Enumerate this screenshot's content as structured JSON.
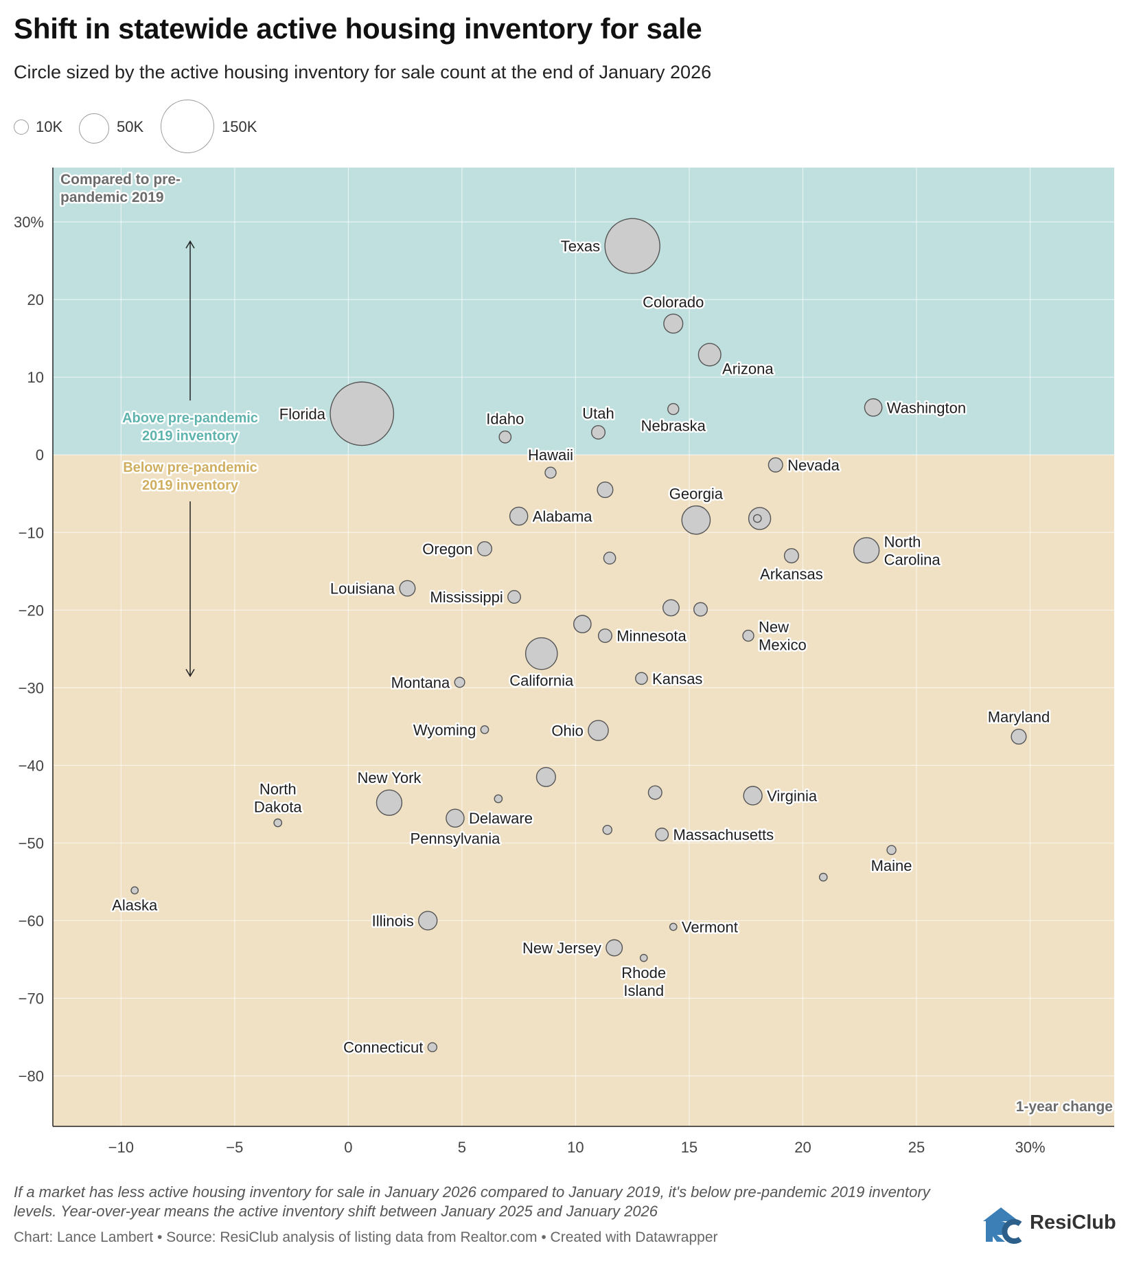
{
  "title": "Shift in statewide active housing inventory for sale",
  "subtitle": "Circle sized by the active housing inventory for sale count at the end of January 2026",
  "size_legend": [
    {
      "label": "10K",
      "value": 10000
    },
    {
      "label": "50K",
      "value": 50000
    },
    {
      "label": "150K",
      "value": 150000
    }
  ],
  "notes": "If a market has less active housing inventory for sale in January 2026 compared to January 2019, it's below pre-pandemic 2019 inventory levels. Year-over-year means the active inventory shift between January 2025 and January 2026",
  "credit": "Chart: Lance Lambert • Source: ResiClub analysis of listing data from Realtor.com • Created with Datawrapper",
  "brand": {
    "logo": "RC",
    "name": "ResiClub"
  },
  "colors": {
    "above": "#bfe0de",
    "below": "#f0e1c5",
    "above_text": "#5fb3ad",
    "below_text": "#cfae60",
    "bubble": "#cccccc",
    "bubble_stroke": "#555555"
  },
  "chart_data": {
    "type": "scatter",
    "title": "Shift in statewide active housing inventory for sale",
    "xlabel": "1-year change",
    "ylabel": "Compared to pre-pandemic 2019",
    "xlim": [
      -13,
      33.7
    ],
    "ylim": [
      -86.5,
      37
    ],
    "x_ticks": [
      {
        "value": -10,
        "label": "−10"
      },
      {
        "value": -5,
        "label": "−5"
      },
      {
        "value": 0,
        "label": "0"
      },
      {
        "value": 5,
        "label": "5"
      },
      {
        "value": 10,
        "label": "10"
      },
      {
        "value": 15,
        "label": "15"
      },
      {
        "value": 20,
        "label": "20"
      },
      {
        "value": 25,
        "label": "25"
      },
      {
        "value": 30,
        "label": "30%"
      }
    ],
    "y_ticks": [
      {
        "value": 30,
        "label": "30%"
      },
      {
        "value": 20,
        "label": "20"
      },
      {
        "value": 10,
        "label": "10"
      },
      {
        "value": 0,
        "label": "0"
      },
      {
        "value": -10,
        "label": "−10"
      },
      {
        "value": -20,
        "label": "−20"
      },
      {
        "value": -30,
        "label": "−30"
      },
      {
        "value": -40,
        "label": "−40"
      },
      {
        "value": -50,
        "label": "−50"
      },
      {
        "value": -60,
        "label": "−60"
      },
      {
        "value": -70,
        "label": "−70"
      },
      {
        "value": -80,
        "label": "−80"
      }
    ],
    "zones": {
      "above_label": [
        "Above pre-pandemic",
        "2019 inventory"
      ],
      "below_label": [
        "Below pre-pandemic",
        "2019 inventory"
      ]
    },
    "points": [
      {
        "name": "Texas",
        "x": 12.5,
        "y": 26.9,
        "size": 150000,
        "label": [
          "Texas"
        ],
        "pos": "left"
      },
      {
        "name": "Florida",
        "x": 0.6,
        "y": 5.3,
        "size": 200000,
        "label": [
          "Florida"
        ],
        "pos": "left"
      },
      {
        "name": "Colorado",
        "x": 14.3,
        "y": 16.9,
        "size": 18000,
        "label": [
          "Colorado"
        ],
        "pos": "top"
      },
      {
        "name": "Arizona",
        "x": 15.9,
        "y": 12.9,
        "size": 25000,
        "label": [
          "Arizona"
        ],
        "pos": "bottom-right"
      },
      {
        "name": "Washington",
        "x": 23.1,
        "y": 6.1,
        "size": 15000,
        "label": [
          "Washington"
        ],
        "pos": "right"
      },
      {
        "name": "Idaho",
        "x": 6.9,
        "y": 2.3,
        "size": 7000,
        "label": [
          "Idaho"
        ],
        "pos": "top"
      },
      {
        "name": "Utah",
        "x": 11.0,
        "y": 2.9,
        "size": 9000,
        "label": [
          "Utah"
        ],
        "pos": "top"
      },
      {
        "name": "Nebraska",
        "x": 14.3,
        "y": 5.9,
        "size": 6000,
        "label": [
          "Nebraska"
        ],
        "pos": "bottom"
      },
      {
        "name": "Hawaii",
        "x": 8.9,
        "y": -2.3,
        "size": 6000,
        "label": [
          "Hawaii"
        ],
        "pos": "top"
      },
      {
        "name": "Nevada",
        "x": 18.8,
        "y": -1.3,
        "size": 10000,
        "label": [
          "Nevada"
        ],
        "pos": "right"
      },
      {
        "name": "Georgia",
        "x": 15.3,
        "y": -8.4,
        "size": 40000,
        "label": [
          "Georgia"
        ],
        "pos": "top"
      },
      {
        "name": "Alabama",
        "x": 7.5,
        "y": -7.9,
        "size": 16000,
        "label": [
          "Alabama"
        ],
        "pos": "right"
      },
      {
        "name": "Oregon",
        "x": 6.0,
        "y": -12.1,
        "size": 10000,
        "label": [
          "Oregon"
        ],
        "pos": "left"
      },
      {
        "name": "North Carolina",
        "x": 22.8,
        "y": -12.3,
        "size": 32000,
        "label": [
          "North",
          "Carolina"
        ],
        "pos": "right"
      },
      {
        "name": "Arkansas",
        "x": 19.5,
        "y": -13.0,
        "size": 10000,
        "label": [
          "Arkansas"
        ],
        "pos": "bottom"
      },
      {
        "name": "Louisiana",
        "x": 2.6,
        "y": -17.2,
        "size": 12000,
        "label": [
          "Louisiana"
        ],
        "pos": "left"
      },
      {
        "name": "Mississippi",
        "x": 7.3,
        "y": -18.3,
        "size": 8000,
        "label": [
          "Mississippi"
        ],
        "pos": "left"
      },
      {
        "name": "Minnesota",
        "x": 11.3,
        "y": -23.3,
        "size": 9000,
        "label": [
          "Minnesota"
        ],
        "pos": "right"
      },
      {
        "name": "New Mexico",
        "x": 17.6,
        "y": -23.3,
        "size": 6000,
        "label": [
          "New",
          "Mexico"
        ],
        "pos": "right"
      },
      {
        "name": "California",
        "x": 8.5,
        "y": -25.6,
        "size": 50000,
        "label": [
          "California"
        ],
        "pos": "bottom"
      },
      {
        "name": "Montana",
        "x": 4.9,
        "y": -29.3,
        "size": 5000,
        "label": [
          "Montana"
        ],
        "pos": "left"
      },
      {
        "name": "Kansas",
        "x": 12.9,
        "y": -28.8,
        "size": 7000,
        "label": [
          "Kansas"
        ],
        "pos": "right"
      },
      {
        "name": "Maryland",
        "x": 29.5,
        "y": -36.3,
        "size": 11000,
        "label": [
          "Maryland"
        ],
        "pos": "top"
      },
      {
        "name": "Wyoming",
        "x": 6.0,
        "y": -35.4,
        "size": 3000,
        "label": [
          "Wyoming"
        ],
        "pos": "left"
      },
      {
        "name": "Ohio",
        "x": 11.0,
        "y": -35.5,
        "size": 20000,
        "label": [
          "Ohio"
        ],
        "pos": "left"
      },
      {
        "name": "New York",
        "x": 1.8,
        "y": -44.8,
        "size": 32000,
        "label": [
          "New York"
        ],
        "pos": "top"
      },
      {
        "name": "Virginia",
        "x": 17.8,
        "y": -43.9,
        "size": 17000,
        "label": [
          "Virginia"
        ],
        "pos": "right"
      },
      {
        "name": "North Dakota",
        "x": -3.1,
        "y": -47.4,
        "size": 3000,
        "label": [
          "North",
          "Dakota"
        ],
        "pos": "top"
      },
      {
        "name": "Delaware",
        "x": 4.7,
        "y": -46.8,
        "size": 16000,
        "label": [
          "Delaware"
        ],
        "pos": "right"
      },
      {
        "name": "Pennsylvania",
        "x": 4.7,
        "y": -46.8,
        "size": 0,
        "label": [
          "Pennsylvania"
        ],
        "pos": "bottom"
      },
      {
        "name": "Massachusetts",
        "x": 13.8,
        "y": -48.9,
        "size": 8000,
        "label": [
          "Massachusetts"
        ],
        "pos": "right"
      },
      {
        "name": "Maine",
        "x": 23.9,
        "y": -50.9,
        "size": 4000,
        "label": [
          "Maine"
        ],
        "pos": "bottom"
      },
      {
        "name": "Alaska",
        "x": -9.4,
        "y": -56.1,
        "size": 2500,
        "label": [
          "Alaska"
        ],
        "pos": "bottom"
      },
      {
        "name": "Illinois",
        "x": 3.5,
        "y": -60.0,
        "size": 17000,
        "label": [
          "Illinois"
        ],
        "pos": "left"
      },
      {
        "name": "Vermont",
        "x": 14.3,
        "y": -60.8,
        "size": 2500,
        "label": [
          "Vermont"
        ],
        "pos": "right"
      },
      {
        "name": "New Jersey",
        "x": 11.7,
        "y": -63.5,
        "size": 13000,
        "label": [
          "New Jersey"
        ],
        "pos": "left"
      },
      {
        "name": "Rhode Island",
        "x": 13.0,
        "y": -64.8,
        "size": 2500,
        "label": [
          "Rhode",
          "Island"
        ],
        "pos": "bottom"
      },
      {
        "name": "Connecticut",
        "x": 3.7,
        "y": -76.3,
        "size": 4000,
        "label": [
          "Connecticut"
        ],
        "pos": "left"
      },
      {
        "name": "",
        "x": 11.3,
        "y": -4.5,
        "size": 12000,
        "label": [],
        "pos": "none"
      },
      {
        "name": "",
        "x": 18.1,
        "y": -8.2,
        "size": 24000,
        "label": [],
        "pos": "none"
      },
      {
        "name": "",
        "x": 18.0,
        "y": -8.2,
        "size": 3000,
        "label": [],
        "pos": "none"
      },
      {
        "name": "",
        "x": 11.5,
        "y": -13.3,
        "size": 7000,
        "label": [],
        "pos": "none"
      },
      {
        "name": "",
        "x": 14.2,
        "y": -19.7,
        "size": 13000,
        "label": [],
        "pos": "none"
      },
      {
        "name": "",
        "x": 15.5,
        "y": -19.9,
        "size": 9000,
        "label": [],
        "pos": "none"
      },
      {
        "name": "",
        "x": 10.3,
        "y": -21.8,
        "size": 15000,
        "label": [],
        "pos": "none"
      },
      {
        "name": "",
        "x": 8.7,
        "y": -41.5,
        "size": 18000,
        "label": [],
        "pos": "none"
      },
      {
        "name": "",
        "x": 13.5,
        "y": -43.5,
        "size": 9000,
        "label": [],
        "pos": "none"
      },
      {
        "name": "",
        "x": 6.6,
        "y": -44.3,
        "size": 3000,
        "label": [],
        "pos": "none"
      },
      {
        "name": "",
        "x": 11.4,
        "y": -48.3,
        "size": 4000,
        "label": [],
        "pos": "none"
      },
      {
        "name": "",
        "x": 20.9,
        "y": -54.4,
        "size": 3000,
        "label": [],
        "pos": "none"
      }
    ]
  }
}
